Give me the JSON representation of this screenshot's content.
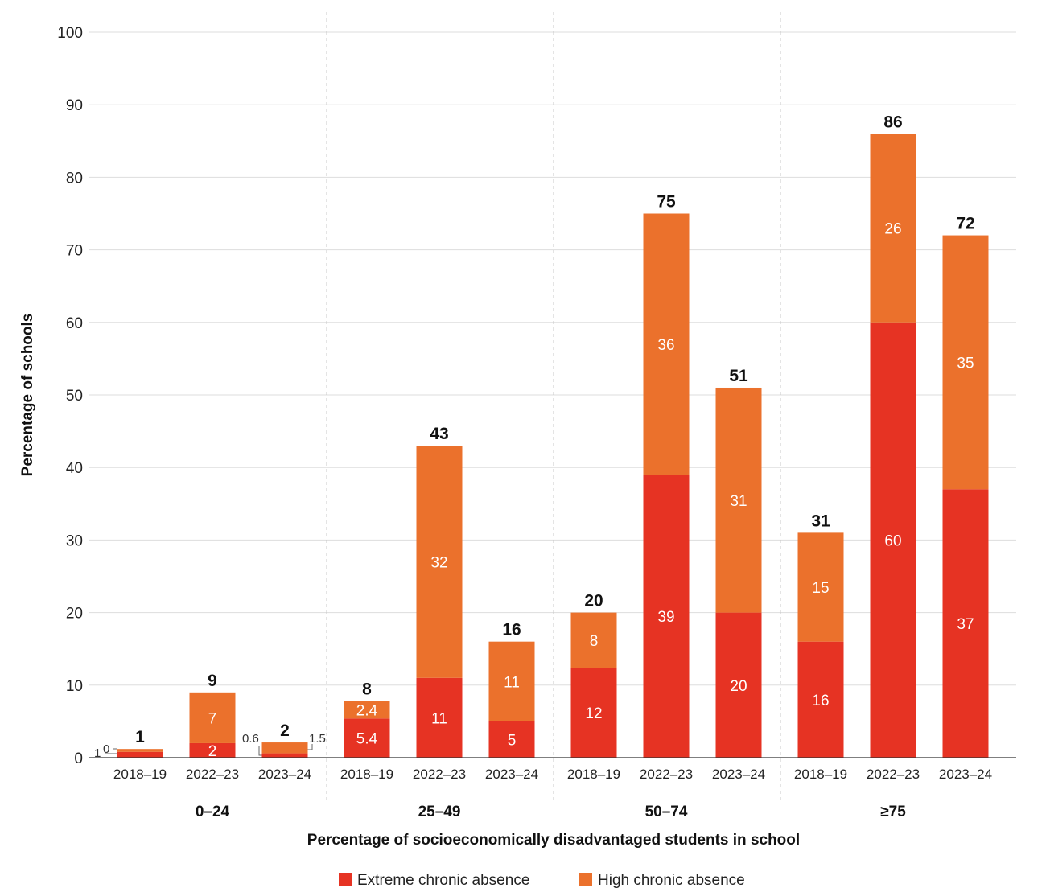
{
  "chart_data": {
    "type": "bar",
    "stacked": true,
    "title": "",
    "ylabel": "Percentage of schools",
    "xlabel": "Percentage of socioeconomically disadvantaged students in school",
    "ylim": [
      0,
      100
    ],
    "yticks": [
      0,
      10,
      20,
      30,
      40,
      50,
      60,
      70,
      80,
      90,
      100
    ],
    "groups": [
      "0–24",
      "25–49",
      "50–74",
      "≥75"
    ],
    "years": [
      "2018–19",
      "2022–23",
      "2023–24"
    ],
    "series": [
      {
        "name": "Extreme chronic absence",
        "color": "#e63323",
        "values": [
          0.8,
          2,
          0.6,
          5.4,
          11,
          5,
          12.4,
          39,
          20,
          16,
          60,
          37
        ],
        "labels": [
          "1",
          "2",
          "0.6",
          "5.4",
          "11",
          "5",
          "12",
          "39",
          "20",
          "16",
          "60",
          "37"
        ]
      },
      {
        "name": "High chronic absence",
        "color": "#eb712c",
        "values": [
          0.4,
          7,
          1.5,
          2.4,
          32,
          11,
          7.6,
          36,
          31,
          15,
          26,
          35
        ],
        "labels": [
          "0",
          "7",
          "1.5",
          "2.4",
          "32",
          "11",
          "8",
          "36",
          "31",
          "15",
          "26",
          "35"
        ]
      }
    ],
    "totals": [
      "1",
      "9",
      "2",
      "8",
      "43",
      "16",
      "20",
      "75",
      "51",
      "31",
      "86",
      "72"
    ],
    "legend_position": "bottom"
  }
}
